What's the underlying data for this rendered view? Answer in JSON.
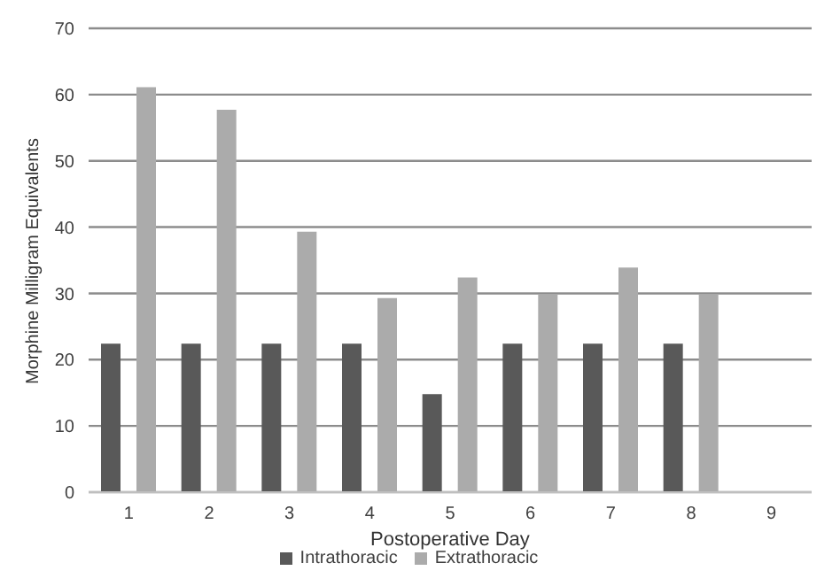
{
  "chart_data": {
    "type": "bar",
    "xlabel": "Postoperative Day",
    "ylabel": "Morphine Milligram Equivalents",
    "categories": [
      "1",
      "2",
      "3",
      "4",
      "5",
      "6",
      "7",
      "8",
      "9"
    ],
    "series": [
      {
        "name": "Intrathoracic",
        "color": "#595959",
        "values": [
          22.4,
          22.4,
          22.4,
          22.4,
          14.8,
          22.4,
          22.4,
          22.4,
          null
        ]
      },
      {
        "name": "Extrathoracic",
        "color": "#ababab",
        "values": [
          61.1,
          57.7,
          39.3,
          29.3,
          32.4,
          29.8,
          33.9,
          29.8,
          null
        ]
      }
    ],
    "ylim": [
      0,
      70
    ],
    "yticks": [
      0,
      10,
      20,
      30,
      40,
      50,
      60,
      70
    ],
    "grid": "y",
    "legend": "bottom"
  }
}
